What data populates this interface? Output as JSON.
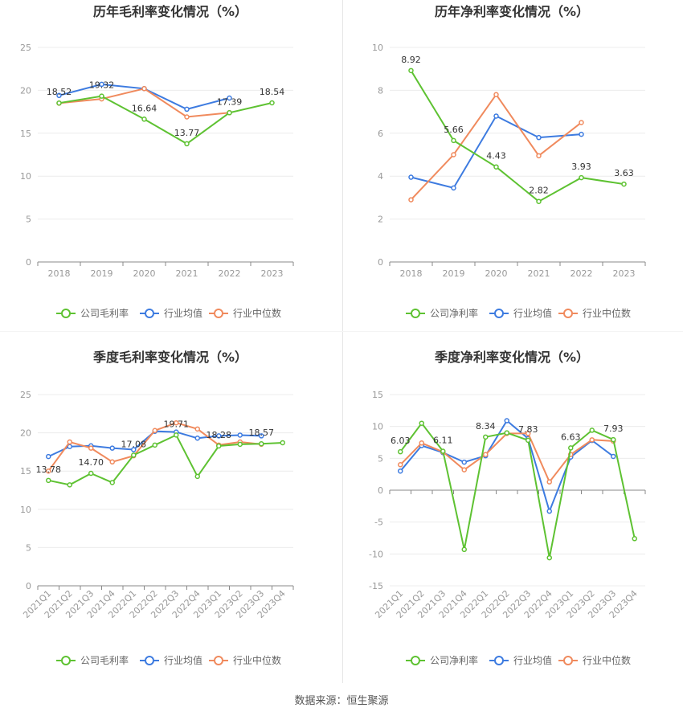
{
  "colors": {
    "company": "#5ec232",
    "industry_avg": "#3d7be0",
    "industry_median": "#f08a5d",
    "grid": "#ececec",
    "axis": "#cccccc"
  },
  "legend": {
    "gross": [
      "公司毛利率",
      "行业均值",
      "行业中位数"
    ],
    "net": [
      "公司净利率",
      "行业均值",
      "行业中位数"
    ]
  },
  "source": "数据来源：恒生聚源",
  "chart_data": [
    {
      "id": "annual-gross",
      "type": "line",
      "title": "历年毛利率变化情况（%）",
      "categories": [
        "2018",
        "2019",
        "2020",
        "2021",
        "2022",
        "2023"
      ],
      "ylim": [
        0,
        25
      ],
      "yticks": [
        0,
        5,
        10,
        15,
        20,
        25
      ],
      "series": [
        {
          "name": "公司毛利率",
          "values": [
            18.52,
            19.32,
            16.64,
            13.77,
            17.39,
            18.54
          ]
        },
        {
          "name": "行业均值",
          "values": [
            19.4,
            20.7,
            20.2,
            17.8,
            19.1,
            null
          ]
        },
        {
          "name": "行业中位数",
          "values": [
            18.5,
            19.0,
            20.2,
            16.9,
            17.4,
            null
          ]
        }
      ],
      "labels": [
        "18.52",
        "19.32",
        "16.64",
        "13.77",
        "17.39",
        "18.54"
      ]
    },
    {
      "id": "annual-net",
      "type": "line",
      "title": "历年净利率变化情况（%）",
      "categories": [
        "2018",
        "2019",
        "2020",
        "2021",
        "2022",
        "2023"
      ],
      "ylim": [
        0,
        10
      ],
      "yticks": [
        0,
        2,
        4,
        6,
        8,
        10
      ],
      "series": [
        {
          "name": "公司净利率",
          "values": [
            8.92,
            5.66,
            4.43,
            2.82,
            3.93,
            3.63
          ]
        },
        {
          "name": "行业均值",
          "values": [
            3.95,
            3.45,
            6.8,
            5.8,
            5.95,
            null
          ]
        },
        {
          "name": "行业中位数",
          "values": [
            2.9,
            5.0,
            7.8,
            4.95,
            6.5,
            null
          ]
        }
      ],
      "labels": [
        "8.92",
        "5.66",
        "4.43",
        "2.82",
        "3.93",
        "3.63"
      ]
    },
    {
      "id": "quarterly-gross",
      "type": "line",
      "title": "季度毛利率变化情况（%）",
      "categories": [
        "2021Q1",
        "2021Q2",
        "2021Q3",
        "2021Q4",
        "2022Q1",
        "2022Q2",
        "2022Q3",
        "2022Q4",
        "2023Q1",
        "2023Q2",
        "2023Q3",
        "2023Q4"
      ],
      "ylim": [
        0,
        25
      ],
      "yticks": [
        0,
        5,
        10,
        15,
        20,
        25
      ],
      "series": [
        {
          "name": "公司毛利率",
          "values": [
            13.78,
            13.2,
            14.7,
            13.5,
            17.08,
            18.4,
            19.71,
            14.3,
            18.28,
            18.5,
            18.57,
            18.7
          ]
        },
        {
          "name": "行业均值",
          "values": [
            16.9,
            18.2,
            18.3,
            18.0,
            17.8,
            20.2,
            20.1,
            19.3,
            19.6,
            19.7,
            19.6,
            null
          ]
        },
        {
          "name": "行业中位数",
          "values": [
            15.0,
            18.8,
            18.0,
            16.2,
            17.0,
            20.3,
            21.3,
            20.5,
            18.4,
            18.8,
            18.5,
            null
          ]
        }
      ],
      "labels": [
        "13.78",
        "",
        "14.70",
        "",
        "17.08",
        "",
        "19.71",
        "",
        "18.28",
        "",
        "18.57",
        ""
      ]
    },
    {
      "id": "quarterly-net",
      "type": "line",
      "title": "季度净利率变化情况（%）",
      "categories": [
        "2021Q1",
        "2021Q2",
        "2021Q3",
        "2021Q4",
        "2022Q1",
        "2022Q2",
        "2022Q3",
        "2022Q4",
        "2023Q1",
        "2023Q2",
        "2023Q3",
        "2023Q4"
      ],
      "ylim": [
        -15,
        15
      ],
      "yticks": [
        -15,
        -10,
        -5,
        0,
        5,
        10,
        15
      ],
      "series": [
        {
          "name": "公司净利率",
          "values": [
            6.03,
            10.5,
            6.11,
            -9.3,
            8.34,
            9.0,
            7.83,
            -10.6,
            6.63,
            9.4,
            7.93,
            -7.6
          ]
        },
        {
          "name": "行业均值",
          "values": [
            3.0,
            7.0,
            5.9,
            4.4,
            5.4,
            10.9,
            8.1,
            -3.3,
            5.2,
            7.8,
            5.3,
            null
          ]
        },
        {
          "name": "行业中位数",
          "values": [
            4.0,
            7.4,
            6.0,
            3.2,
            5.6,
            8.9,
            8.9,
            1.3,
            5.6,
            7.9,
            7.7,
            null
          ]
        }
      ],
      "labels": [
        "6.03",
        "",
        "6.11",
        "",
        "8.34",
        "",
        "7.83",
        "",
        "6.63",
        "",
        "7.93",
        ""
      ]
    }
  ]
}
